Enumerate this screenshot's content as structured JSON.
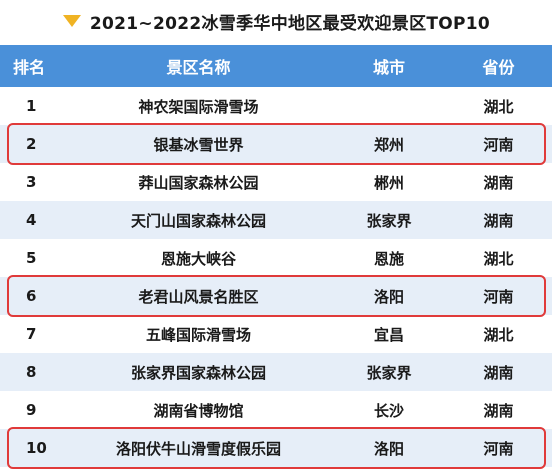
{
  "title": {
    "icon": "triangle-down-icon",
    "icon_color": "#f0b323",
    "text": "2021~2022冰雪季华中地区最受欢迎景区TOP10"
  },
  "colors": {
    "header_bg": "#4a90d9",
    "stripe_bg": "#e6eef8",
    "highlight_border": "#e03a3a"
  },
  "table": {
    "headers": {
      "rank": "排名",
      "name": "景区名称",
      "city": "城市",
      "province": "省份"
    },
    "rows": [
      {
        "rank": "1",
        "name": "神农架国际滑雪场",
        "city": "",
        "province": "湖北",
        "highlighted": false
      },
      {
        "rank": "2",
        "name": "银基冰雪世界",
        "city": "郑州",
        "province": "河南",
        "highlighted": true
      },
      {
        "rank": "3",
        "name": "莽山国家森林公园",
        "city": "郴州",
        "province": "湖南",
        "highlighted": false
      },
      {
        "rank": "4",
        "name": "天门山国家森林公园",
        "city": "张家界",
        "province": "湖南",
        "highlighted": false
      },
      {
        "rank": "5",
        "name": "恩施大峡谷",
        "city": "恩施",
        "province": "湖北",
        "highlighted": false
      },
      {
        "rank": "6",
        "name": "老君山风景名胜区",
        "city": "洛阳",
        "province": "河南",
        "highlighted": true
      },
      {
        "rank": "7",
        "name": "五峰国际滑雪场",
        "city": "宜昌",
        "province": "湖北",
        "highlighted": false
      },
      {
        "rank": "8",
        "name": "张家界国家森林公园",
        "city": "张家界",
        "province": "湖南",
        "highlighted": false
      },
      {
        "rank": "9",
        "name": "湖南省博物馆",
        "city": "长沙",
        "province": "湖南",
        "highlighted": false
      },
      {
        "rank": "10",
        "name": "洛阳伏牛山滑雪度假乐园",
        "city": "洛阳",
        "province": "河南",
        "highlighted": true
      }
    ]
  }
}
